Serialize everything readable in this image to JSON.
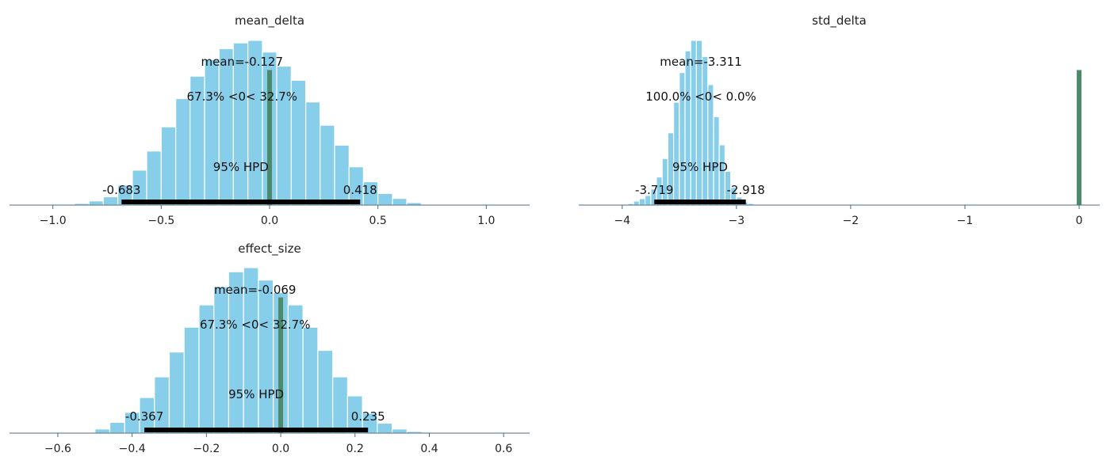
{
  "colors": {
    "bar": "#87ceeb",
    "ref": "#4d8a6b",
    "hpd": "#000000",
    "axis": "#4a6a80"
  },
  "chart_data": [
    {
      "type": "bar",
      "title": "mean_delta",
      "xlim": [
        -1.2,
        1.2
      ],
      "xticks": [
        -1.0,
        -0.5,
        0.0,
        0.5,
        1.0
      ],
      "xtick_labels": [
        "−1.0",
        "−0.5",
        "0.0",
        "0.5",
        "1.0"
      ],
      "bin_edges": [
        -0.9,
        -0.833,
        -0.767,
        -0.7,
        -0.633,
        -0.567,
        -0.5,
        -0.433,
        -0.367,
        -0.3,
        -0.233,
        -0.167,
        -0.1,
        -0.033,
        0.033,
        0.1,
        0.167,
        0.233,
        0.3,
        0.367,
        0.433,
        0.5,
        0.567,
        0.633,
        0.7
      ],
      "counts": [
        2,
        5,
        10,
        24,
        42,
        65,
        94,
        128,
        155,
        175,
        188,
        195,
        198,
        184,
        167,
        150,
        124,
        96,
        72,
        46,
        28,
        14,
        8,
        3
      ],
      "mean_label": "mean=-0.127",
      "ref_value": 0,
      "ref_label": "67.3% <0< 32.7%",
      "hpd": [
        -0.683,
        0.418
      ],
      "hpd_label": "95% HPD",
      "hpd_low_label": "-0.683",
      "hpd_high_label": "0.418"
    },
    {
      "type": "bar",
      "title": "std_delta",
      "xlim": [
        -4.38,
        0.18
      ],
      "xticks": [
        -4,
        -3,
        -2,
        -1,
        0
      ],
      "xtick_labels": [
        "−4",
        "−3",
        "−2",
        "−1",
        "0"
      ],
      "bin_edges": [
        -4.0,
        -3.95,
        -3.9,
        -3.85,
        -3.8,
        -3.75,
        -3.7,
        -3.65,
        -3.6,
        -3.55,
        -3.5,
        -3.45,
        -3.4,
        -3.35,
        -3.3,
        -3.25,
        -3.2,
        -3.15,
        -3.1,
        -3.05,
        -3.0,
        -2.95,
        -2.9,
        -2.85,
        -2.8,
        -2.75,
        -2.7
      ],
      "counts": [
        1,
        2,
        5,
        8,
        12,
        20,
        35,
        58,
        90,
        128,
        165,
        192,
        205,
        205,
        185,
        150,
        110,
        75,
        42,
        22,
        10,
        4,
        2,
        1,
        0,
        1
      ],
      "mean_label": "mean=-3.311",
      "ref_value": 0,
      "ref_label": "100.0% <0< 0.0%",
      "hpd": [
        -3.719,
        -2.918
      ],
      "hpd_label": "95% HPD",
      "hpd_low_label": "-3.719",
      "hpd_high_label": "-2.918"
    },
    {
      "type": "bar",
      "title": "effect_size",
      "xlim": [
        -0.73,
        0.67
      ],
      "xticks": [
        -0.6,
        -0.4,
        -0.2,
        0.0,
        0.2,
        0.4,
        0.6
      ],
      "xtick_labels": [
        "−0.6",
        "−0.4",
        "−0.2",
        "0.0",
        "0.2",
        "0.4",
        "0.6"
      ],
      "bin_edges": [
        -0.5,
        -0.46,
        -0.42,
        -0.38,
        -0.34,
        -0.3,
        -0.26,
        -0.22,
        -0.18,
        -0.14,
        -0.1,
        -0.06,
        -0.02,
        0.02,
        0.06,
        0.1,
        0.14,
        0.18,
        0.22,
        0.26,
        0.3,
        0.34,
        0.38
      ],
      "counts": [
        5,
        13,
        25,
        43,
        68,
        98,
        128,
        155,
        177,
        195,
        200,
        185,
        170,
        155,
        128,
        100,
        68,
        45,
        24,
        12,
        5,
        2
      ],
      "mean_label": "mean=-0.069",
      "ref_value": 0,
      "ref_label": "67.3% <0< 32.7%",
      "hpd": [
        -0.367,
        0.235
      ],
      "hpd_label": "95% HPD",
      "hpd_low_label": "-0.367",
      "hpd_high_label": "0.235"
    }
  ]
}
